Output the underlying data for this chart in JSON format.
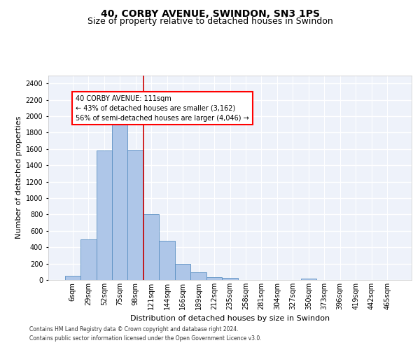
{
  "title": "40, CORBY AVENUE, SWINDON, SN3 1PS",
  "subtitle": "Size of property relative to detached houses in Swindon",
  "xlabel": "Distribution of detached houses by size in Swindon",
  "ylabel": "Number of detached properties",
  "annotation_line1": "40 CORBY AVENUE: 111sqm",
  "annotation_line2": "← 43% of detached houses are smaller (3,162)",
  "annotation_line3": "56% of semi-detached houses are larger (4,046) →",
  "footer_line1": "Contains HM Land Registry data © Crown copyright and database right 2024.",
  "footer_line2": "Contains public sector information licensed under the Open Government Licence v3.0.",
  "bar_labels": [
    "6sqm",
    "29sqm",
    "52sqm",
    "75sqm",
    "98sqm",
    "121sqm",
    "144sqm",
    "166sqm",
    "189sqm",
    "212sqm",
    "235sqm",
    "258sqm",
    "281sqm",
    "304sqm",
    "327sqm",
    "350sqm",
    "373sqm",
    "396sqm",
    "419sqm",
    "442sqm",
    "465sqm"
  ],
  "bar_values": [
    55,
    500,
    1580,
    1950,
    1590,
    800,
    475,
    200,
    90,
    35,
    25,
    0,
    0,
    0,
    0,
    20,
    0,
    0,
    0,
    0,
    0
  ],
  "bar_color": "#aec6e8",
  "bar_edge_color": "#5a8fc2",
  "vline_x": 4.5,
  "vline_color": "#cc0000",
  "ylim": [
    0,
    2500
  ],
  "yticks": [
    0,
    200,
    400,
    600,
    800,
    1000,
    1200,
    1400,
    1600,
    1800,
    2000,
    2200,
    2400
  ],
  "bg_color": "#eef2fa",
  "grid_color": "#ffffff",
  "title_fontsize": 10,
  "subtitle_fontsize": 9,
  "xlabel_fontsize": 8,
  "ylabel_fontsize": 8,
  "tick_fontsize": 7,
  "ann_fontsize": 7,
  "footer_fontsize": 5.5
}
